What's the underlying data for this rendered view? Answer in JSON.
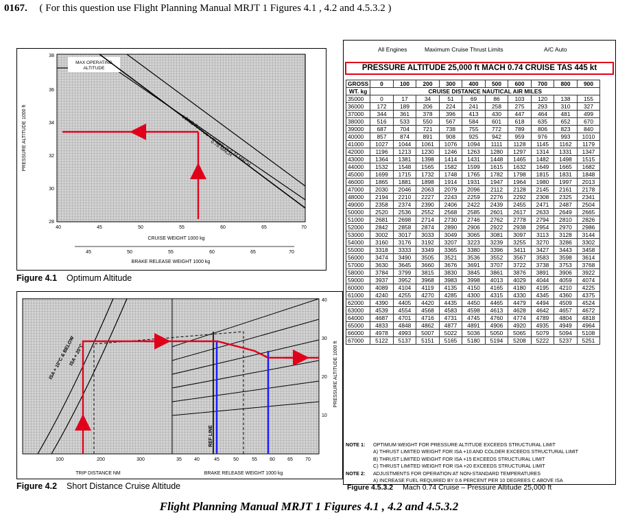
{
  "question": {
    "number": "0167.",
    "text": "( For this question use Flight Planning Manual MRJT 1 Figures 4.1 , 4.2 and 4.5.3.2 )"
  },
  "fig41": {
    "y_axis_label": "PRESSURE ALTITUDE  1000 ft",
    "y_ticks": [
      "38",
      "36",
      "34",
      "32",
      "30",
      "28"
    ],
    "x_ticks": [
      "40",
      "45",
      "50",
      "55",
      "60",
      "65",
      "70"
    ],
    "x_label": "CRUISE WEIGHT  1000 kg",
    "x2_ticks": [
      "45",
      "50",
      "55",
      "60",
      "65",
      "70"
    ],
    "x2_label": "BRAKE RELEASE WEIGHT  1000 kg",
    "max_alt_label_1": "MAX OPERATING",
    "max_alt_label_2": "ALTITUDE",
    "curve_label_1": "LONG RANGE CRUISE or 0.74 MACH",
    "curve_label_2": "0.78 MACH",
    "caption_num": "Figure 4.1",
    "caption_text": "Optimum Altitude"
  },
  "fig42": {
    "right_ticks": [
      "40",
      "30",
      "20",
      "10"
    ],
    "right_label": "PRESSURE ALTITUDE  1000 ft",
    "trip_ticks": [
      "100",
      "200",
      "300"
    ],
    "trip_label": "TRIP DISTANCE  NM",
    "brw_ticks": [
      "35",
      "40",
      "45",
      "50",
      "55",
      "60",
      "65",
      "70"
    ],
    "brw_label": "BRAKE RELEASE WEIGHT  1000 kg",
    "isa_label_1": "ISA + 10°C & BELOW",
    "isa_label_2": "ISA + 20°C",
    "ref_line": "REF LINE",
    "caption_num": "Figure 4.2",
    "caption_text": "Short Distance Cruise Altitude"
  },
  "table": {
    "top_left": "All Engines",
    "top_mid": "Maximum Cruise Thrust Limits",
    "top_right": "A/C Auto",
    "banner": "PRESSURE ALTITUDE  25,000 ft    MACH 0.74 CRUISE    TAS 445 kt",
    "gross_label": "GROSS",
    "wt_label": "WT. kg",
    "dist_headers": [
      "0",
      "100",
      "200",
      "300",
      "400",
      "500",
      "600",
      "700",
      "800",
      "900"
    ],
    "subheader": "CRUISE DISTANCE NAUTICAL AIR MILES",
    "rows": [
      {
        "wt": "35000",
        "v": [
          "0",
          "17",
          "34",
          "51",
          "69",
          "86",
          "103",
          "120",
          "138",
          "155"
        ]
      },
      {
        "wt": "36000",
        "v": [
          "172",
          "189",
          "206",
          "224",
          "241",
          "258",
          "275",
          "293",
          "310",
          "327"
        ]
      },
      {
        "wt": "37000",
        "v": [
          "344",
          "361",
          "378",
          "396",
          "413",
          "430",
          "447",
          "464",
          "481",
          "499"
        ]
      },
      {
        "wt": "38000",
        "v": [
          "516",
          "533",
          "550",
          "567",
          "584",
          "601",
          "618",
          "635",
          "652",
          "670"
        ]
      },
      {
        "wt": "39000",
        "v": [
          "687",
          "704",
          "721",
          "738",
          "755",
          "772",
          "789",
          "806",
          "823",
          "840"
        ]
      },
      {
        "wt": "40000",
        "v": [
          "857",
          "874",
          "891",
          "908",
          "925",
          "942",
          "959",
          "976",
          "993",
          "1010"
        ]
      },
      {
        "wt": "41000",
        "v": [
          "1027",
          "1044",
          "1061",
          "1076",
          "1094",
          "1111",
          "1128",
          "1145",
          "1162",
          "1179"
        ]
      },
      {
        "wt": "42000",
        "v": [
          "1196",
          "1213",
          "1230",
          "1246",
          "1263",
          "1280",
          "1297",
          "1314",
          "1331",
          "1347"
        ]
      },
      {
        "wt": "43000",
        "v": [
          "1364",
          "1381",
          "1398",
          "1414",
          "1431",
          "1448",
          "1465",
          "1482",
          "1498",
          "1515"
        ]
      },
      {
        "wt": "44000",
        "v": [
          "1532",
          "1548",
          "1565",
          "1582",
          "1599",
          "1615",
          "1632",
          "1649",
          "1665",
          "1682"
        ]
      },
      {
        "wt": "45000",
        "v": [
          "1699",
          "1715",
          "1732",
          "1748",
          "1765",
          "1782",
          "1798",
          "1815",
          "1831",
          "1848"
        ]
      },
      {
        "wt": "46000",
        "v": [
          "1865",
          "1881",
          "1898",
          "1914",
          "1931",
          "1947",
          "1964",
          "1980",
          "1997",
          "2013"
        ]
      },
      {
        "wt": "47000",
        "v": [
          "2030",
          "2046",
          "2063",
          "2079",
          "2096",
          "2112",
          "2128",
          "2145",
          "2161",
          "2178"
        ]
      },
      {
        "wt": "48000",
        "v": [
          "2194",
          "2210",
          "2227",
          "2243",
          "2259",
          "2276",
          "2292",
          "2308",
          "2325",
          "2341"
        ]
      },
      {
        "wt": "49000",
        "v": [
          "2358",
          "2374",
          "2390",
          "2406",
          "2422",
          "2439",
          "2455",
          "2471",
          "2487",
          "2504"
        ]
      },
      {
        "wt": "50000",
        "v": [
          "2520",
          "2536",
          "2552",
          "2568",
          "2585",
          "2601",
          "2617",
          "2633",
          "2649",
          "2665"
        ]
      },
      {
        "wt": "51000",
        "v": [
          "2681",
          "2698",
          "2714",
          "2730",
          "2746",
          "2762",
          "2778",
          "2794",
          "2810",
          "2826"
        ]
      },
      {
        "wt": "52000",
        "v": [
          "2842",
          "2858",
          "2874",
          "2890",
          "2906",
          "2922",
          "2938",
          "2954",
          "2970",
          "2986"
        ]
      },
      {
        "wt": "53000",
        "v": [
          "3002",
          "3017",
          "3033",
          "3049",
          "3065",
          "3081",
          "3097",
          "3113",
          "3128",
          "3144"
        ]
      },
      {
        "wt": "54000",
        "v": [
          "3160",
          "3176",
          "3192",
          "3207",
          "3223",
          "3239",
          "3255",
          "3270",
          "3286",
          "3302"
        ]
      },
      {
        "wt": "55000",
        "v": [
          "3318",
          "3333",
          "3349",
          "3365",
          "3380",
          "3396",
          "3411",
          "3427",
          "3443",
          "3458"
        ]
      },
      {
        "wt": "56000",
        "v": [
          "3474",
          "3490",
          "3505",
          "3521",
          "3536",
          "3552",
          "3567",
          "3583",
          "3598",
          "3614"
        ]
      },
      {
        "wt": "57000",
        "v": [
          "3630",
          "3645",
          "3660",
          "3676",
          "3691",
          "3707",
          "3722",
          "3738",
          "3753",
          "3768"
        ]
      },
      {
        "wt": "58000",
        "v": [
          "3784",
          "3799",
          "3815",
          "3830",
          "3845",
          "3861",
          "3876",
          "3891",
          "3906",
          "3922"
        ]
      },
      {
        "wt": "59000",
        "v": [
          "3937",
          "3952",
          "3968",
          "3983",
          "3998",
          "4013",
          "4029",
          "4044",
          "4059",
          "4074"
        ]
      },
      {
        "wt": "60000",
        "v": [
          "4089",
          "4104",
          "4119",
          "4135",
          "4150",
          "4165",
          "4180",
          "4195",
          "4210",
          "4225"
        ]
      },
      {
        "wt": "61000",
        "v": [
          "4240",
          "4255",
          "4270",
          "4285",
          "4300",
          "4315",
          "4330",
          "4345",
          "4360",
          "4375"
        ]
      },
      {
        "wt": "62000",
        "v": [
          "4390",
          "4405",
          "4420",
          "4435",
          "4450",
          "4465",
          "4479",
          "4494",
          "4509",
          "4524"
        ]
      },
      {
        "wt": "63000",
        "v": [
          "4539",
          "4554",
          "4568",
          "4583",
          "4598",
          "4613",
          "4628",
          "4642",
          "4657",
          "4672"
        ]
      },
      {
        "wt": "64000",
        "v": [
          "4687",
          "4701",
          "4716",
          "4731",
          "4745",
          "4760",
          "4774",
          "4789",
          "4804",
          "4818"
        ]
      },
      {
        "wt": "65000",
        "v": [
          "4833",
          "4848",
          "4862",
          "4877",
          "4891",
          "4906",
          "4920",
          "4935",
          "4949",
          "4964"
        ]
      },
      {
        "wt": "66000",
        "v": [
          "4978",
          "4993",
          "5007",
          "5022",
          "5036",
          "5050",
          "5065",
          "5079",
          "5094",
          "5108"
        ]
      },
      {
        "wt": "67000",
        "v": [
          "5122",
          "5137",
          "5151",
          "5165",
          "5180",
          "5194",
          "5208",
          "5222",
          "5237",
          "5251"
        ]
      }
    ],
    "notes": [
      {
        "label": "NOTE 1:",
        "text": "OPTIMUM WEIGHT FOR PRESSURE ALTITUDE EXCEEDS STRUCTURAL LIMIT"
      },
      {
        "label": "",
        "text": "A)  THRUST LIMITED WEIGHT FOR ISA +10 AND COLDER EXCEEDS STRUCTURAL LIMIT"
      },
      {
        "label": "",
        "text": "B)  THRUST LIMITED WEIGHT FOR ISA +15 EXCEEDS STRUCTURAL LIMIT"
      },
      {
        "label": "",
        "text": "C)  THRUST LIMITED WEIGHT FOR ISA +20 EXCEEDS STRUCTURAL LIMIT"
      },
      {
        "label": "NOTE 2:",
        "text": "ADJUSTMENTS FOR OPERATION AT NON-STANDARD TEMPERATURES"
      },
      {
        "label": "",
        "text": "A)  INCREASE FUEL REQUIRED BY 0.6 PERCENT PER 10 DEGREES C ABOVE ISA"
      },
      {
        "label": "",
        "text": "B)  DECREASE FUEL REQUIRED BY 0.6 PERCENT PER 10 DEGREES C BELOW ISA"
      },
      {
        "label": "",
        "text": "C)  INCREASE TAS BY 1 KNOT PER DEGREE C ABOVE ISA"
      },
      {
        "label": "",
        "text": "D)  DECREASE TAS BY 1 KNOT PER DEGREE C BELOW ISA"
      }
    ],
    "caption_num": "Figure 4.5.3.2",
    "caption_text": "Mach 0.74 Cruise – Pressure Altitude 25,000 ft"
  },
  "bottom_title": "Flight Planning Manual MRJT 1 Figures 4.1 , 4.2 and 4.5.3.2",
  "colors": {
    "annotation_red": "#e0001a",
    "annotation_blue": "#1a1aff",
    "grid_bg": "#cfcfcf",
    "grid_line": "#7a7a7a"
  }
}
